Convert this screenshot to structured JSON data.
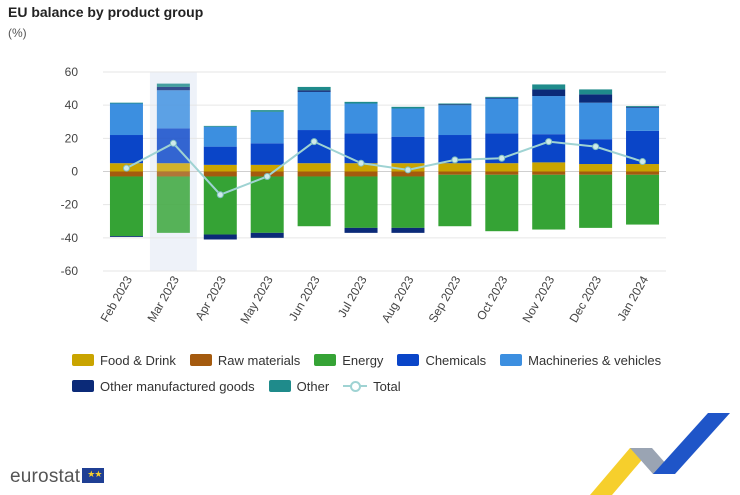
{
  "title": "EU balance by product group",
  "unit": "(%)",
  "logo_text": "eurostat",
  "logo_icon": "eu-flag-icon",
  "colors": {
    "Food & Drink": "#c9a400",
    "Raw materials": "#a45a0e",
    "Energy": "#35a335",
    "Chemicals": "#0a45c8",
    "Machineries & vehicles": "#3c8fe0",
    "Other manufactured goods": "#0b2a78",
    "Other": "#1f8b8b",
    "Total": "#9fd3d3"
  },
  "chart_data": {
    "type": "bar",
    "stacked": true,
    "categories": [
      "Feb 2023",
      "Mar 2023",
      "Apr 2023",
      "May 2023",
      "Jun 2023",
      "Jul 2023",
      "Aug 2023",
      "Sep 2023",
      "Oct 2023",
      "Nov 2023",
      "Dec 2023",
      "Jan 2024"
    ],
    "highlighted_category": "Mar 2023",
    "ylim": [
      -60,
      60
    ],
    "yticks": [
      60,
      40,
      20,
      0,
      -20,
      -40,
      -60
    ],
    "ylabel": "(%)",
    "series": [
      {
        "name": "Food & Drink",
        "values": [
          5,
          5,
          4,
          4,
          5,
          5,
          5,
          5,
          5,
          5.5,
          4.5,
          4.5
        ]
      },
      {
        "name": "Raw materials",
        "values": [
          -3,
          -3,
          -3,
          -3,
          -3,
          -3,
          -3,
          -2,
          -2,
          -2,
          -2,
          -2
        ]
      },
      {
        "name": "Energy",
        "values": [
          -36,
          -34,
          -35,
          -34,
          -30,
          -31,
          -31,
          -31,
          -34,
          -33,
          -32,
          -30
        ]
      },
      {
        "name": "Chemicals",
        "values": [
          17,
          21,
          11,
          13,
          20,
          18,
          16,
          17,
          18,
          17,
          15,
          20
        ]
      },
      {
        "name": "Machineries & vehicles",
        "values": [
          19,
          23,
          12,
          19,
          23,
          18,
          17,
          18,
          21,
          23,
          22,
          14
        ]
      },
      {
        "name": "Other manufactured goods",
        "values": [
          -0.5,
          2,
          -3,
          -3,
          1,
          -3,
          -3,
          0.5,
          0.5,
          4,
          5,
          0.5
        ]
      },
      {
        "name": "Other",
        "values": [
          0.5,
          2,
          0.5,
          1,
          2,
          1,
          1,
          0.5,
          0.5,
          3,
          3,
          0.5
        ]
      },
      {
        "name": "Total",
        "type": "line",
        "values": [
          2,
          17,
          -14,
          -3,
          18,
          5,
          1,
          7,
          8,
          18,
          15,
          6
        ]
      }
    ],
    "legend": [
      {
        "name": "Food & Drink",
        "kind": "box"
      },
      {
        "name": "Raw materials",
        "kind": "box"
      },
      {
        "name": "Energy",
        "kind": "box"
      },
      {
        "name": "Chemicals",
        "kind": "box"
      },
      {
        "name": "Machineries & vehicles",
        "kind": "box"
      },
      {
        "name": "Other manufactured goods",
        "kind": "box"
      },
      {
        "name": "Other",
        "kind": "box"
      },
      {
        "name": "Total",
        "kind": "line"
      }
    ],
    "legend_position": "bottom"
  }
}
